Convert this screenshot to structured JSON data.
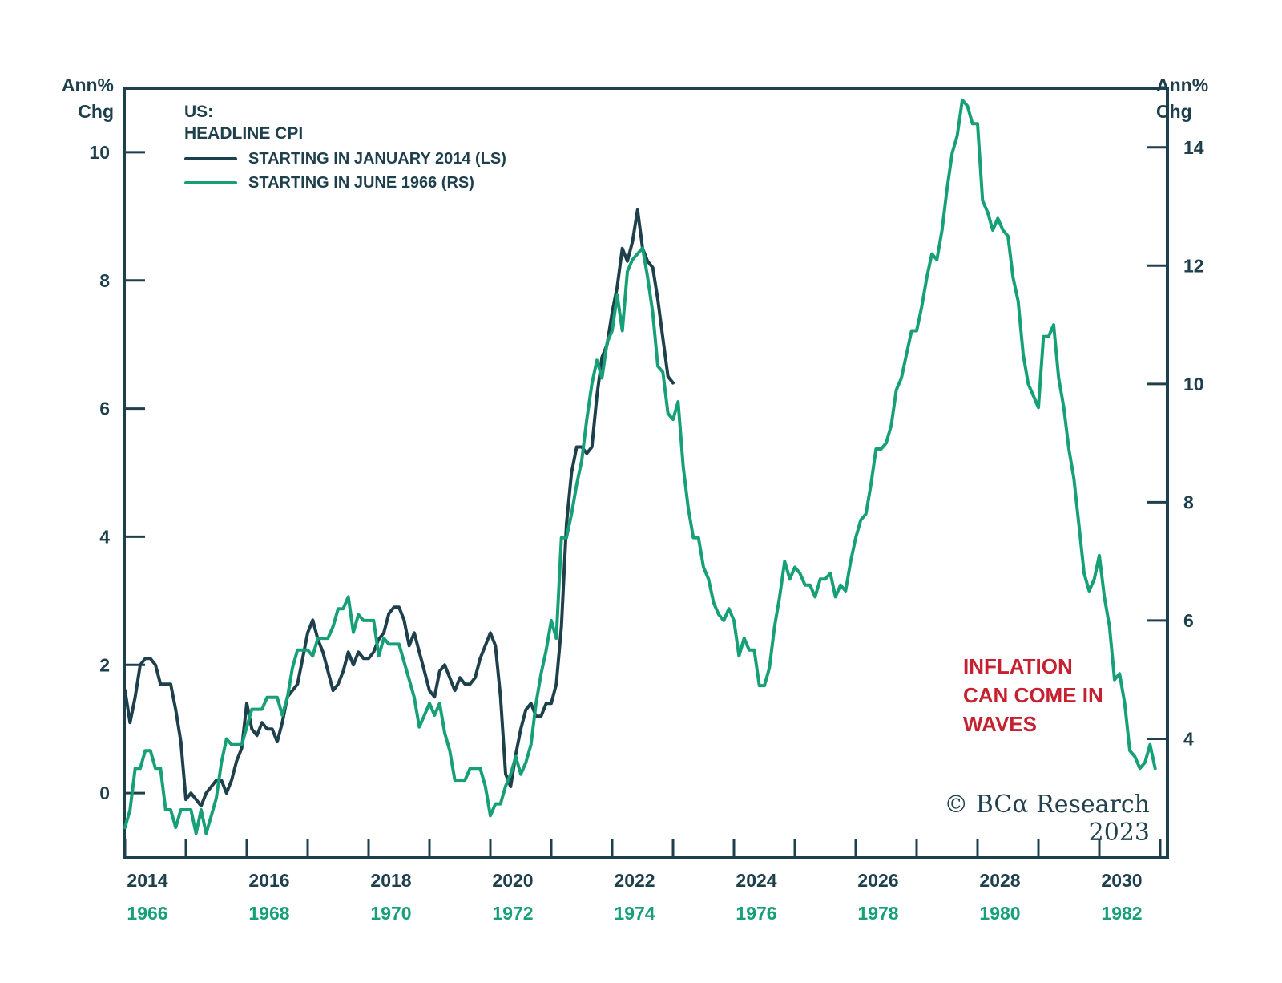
{
  "axis_left": {
    "title": [
      "Ann%",
      "Chg"
    ],
    "ticks": [
      0,
      2,
      4,
      6,
      8,
      10
    ]
  },
  "axis_right": {
    "title": [
      "Ann%",
      "Chg"
    ],
    "ticks": [
      4,
      6,
      8,
      10,
      12,
      14
    ]
  },
  "legend": {
    "region": "US:",
    "title": "HEADLINE CPI"
  },
  "x_axis": {
    "dark_years": [
      "2014",
      "2016",
      "2018",
      "2020",
      "2022",
      "2024",
      "2026",
      "2028",
      "2030"
    ],
    "green_years": [
      "1966",
      "1968",
      "1970",
      "1972",
      "1974",
      "1976",
      "1978",
      "1980",
      "1982"
    ]
  },
  "annotation": {
    "line1": "INFLATION",
    "line2": "CAN COME IN",
    "line3": "WAVES",
    "color": "#c52130"
  },
  "copyright_text": "© BCα Research 2023",
  "colors": {
    "dark": "#1e3f4c",
    "green": "#17a077",
    "red": "#c52130"
  },
  "chart_data": {
    "type": "line",
    "title": "US: HEADLINE CPI",
    "ylabel_left": "Ann% Chg",
    "ylabel_right": "Ann% Chg",
    "left_ylim": [
      -1,
      11
    ],
    "right_ylim": [
      2,
      15
    ],
    "left_ticks": [
      0,
      2,
      4,
      6,
      8,
      10
    ],
    "right_ticks": [
      4,
      6,
      8,
      10,
      12,
      14
    ],
    "x_tick_years_dark": [
      2014,
      2016,
      2018,
      2020,
      2022,
      2024,
      2026,
      2028,
      2030
    ],
    "x_tick_years_green": [
      1966,
      1968,
      1970,
      1972,
      1974,
      1976,
      1978,
      1980,
      1982
    ],
    "alignment_note": "Both series start at the left edge: Jan 2014 (LS series) aligned with Jun 1966 (RS series); monthly data, year-over-year % change",
    "series": [
      {
        "name": "STARTING IN JANUARY 2014 (LS)",
        "axis": "left",
        "color": "#1e3f4c",
        "start": "2014-01",
        "end": "2023-01",
        "frequency": "monthly",
        "values": [
          1.6,
          1.1,
          1.5,
          2.0,
          2.1,
          2.1,
          2.0,
          1.7,
          1.7,
          1.7,
          1.3,
          0.8,
          -0.1,
          0.0,
          -0.1,
          -0.2,
          0.0,
          0.1,
          0.2,
          0.2,
          0.0,
          0.2,
          0.5,
          0.7,
          1.4,
          1.0,
          0.9,
          1.1,
          1.0,
          1.0,
          0.8,
          1.1,
          1.5,
          1.6,
          1.7,
          2.1,
          2.5,
          2.7,
          2.4,
          2.2,
          1.9,
          1.6,
          1.7,
          1.9,
          2.2,
          2.0,
          2.2,
          2.1,
          2.1,
          2.2,
          2.4,
          2.5,
          2.8,
          2.9,
          2.9,
          2.7,
          2.3,
          2.5,
          2.2,
          1.9,
          1.6,
          1.5,
          1.9,
          2.0,
          1.8,
          1.6,
          1.8,
          1.7,
          1.7,
          1.8,
          2.1,
          2.3,
          2.5,
          2.3,
          1.5,
          0.3,
          0.1,
          0.6,
          1.0,
          1.3,
          1.4,
          1.2,
          1.2,
          1.4,
          1.4,
          1.7,
          2.6,
          4.2,
          5.0,
          5.4,
          5.4,
          5.3,
          5.4,
          6.2,
          6.8,
          7.0,
          7.5,
          7.9,
          8.5,
          8.3,
          8.6,
          9.1,
          8.5,
          8.3,
          8.2,
          7.7,
          7.1,
          6.5,
          6.4
        ]
      },
      {
        "name": "STARTING IN JUNE 1966 (RS)",
        "axis": "right",
        "color": "#17a077",
        "start": "1966-06",
        "end": "1983-05",
        "frequency": "monthly",
        "values": [
          2.5,
          2.8,
          3.5,
          3.5,
          3.8,
          3.8,
          3.5,
          3.5,
          2.8,
          2.8,
          2.5,
          2.8,
          2.8,
          2.8,
          2.4,
          2.8,
          2.4,
          2.7,
          3.0,
          3.6,
          4.0,
          3.9,
          3.9,
          3.9,
          4.2,
          4.5,
          4.5,
          4.5,
          4.7,
          4.7,
          4.7,
          4.4,
          4.7,
          5.2,
          5.5,
          5.5,
          5.5,
          5.4,
          5.7,
          5.7,
          5.7,
          5.9,
          6.2,
          6.2,
          6.4,
          5.8,
          6.1,
          6.0,
          6.0,
          6.0,
          5.4,
          5.7,
          5.6,
          5.6,
          5.6,
          5.3,
          5.0,
          4.7,
          4.2,
          4.4,
          4.6,
          4.4,
          4.6,
          4.1,
          3.8,
          3.3,
          3.3,
          3.3,
          3.5,
          3.5,
          3.5,
          3.2,
          2.7,
          2.9,
          2.9,
          3.2,
          3.4,
          3.7,
          3.4,
          3.6,
          3.9,
          4.6,
          5.1,
          5.5,
          6.0,
          5.7,
          7.4,
          7.4,
          7.8,
          8.3,
          8.7,
          9.4,
          10.0,
          10.4,
          10.1,
          10.7,
          10.9,
          11.5,
          10.9,
          11.9,
          12.1,
          12.2,
          12.3,
          11.8,
          11.2,
          10.3,
          10.2,
          9.5,
          9.4,
          9.7,
          8.6,
          7.9,
          7.4,
          7.4,
          6.9,
          6.7,
          6.3,
          6.1,
          6.0,
          6.2,
          6.0,
          5.4,
          5.7,
          5.5,
          5.5,
          4.9,
          4.9,
          5.2,
          5.9,
          6.4,
          7.0,
          6.7,
          6.9,
          6.8,
          6.6,
          6.6,
          6.4,
          6.7,
          6.7,
          6.8,
          6.4,
          6.6,
          6.5,
          7.0,
          7.4,
          7.7,
          7.8,
          8.3,
          8.9,
          8.9,
          9.0,
          9.3,
          9.9,
          10.1,
          10.5,
          10.9,
          10.9,
          11.3,
          11.8,
          12.2,
          12.1,
          12.6,
          13.3,
          13.9,
          14.2,
          14.8,
          14.7,
          14.4,
          14.4,
          13.1,
          12.9,
          12.6,
          12.8,
          12.6,
          12.5,
          11.8,
          11.4,
          10.5,
          10.0,
          9.8,
          9.6,
          10.8,
          10.8,
          11.0,
          10.1,
          9.6,
          8.9,
          8.4,
          7.6,
          6.8,
          6.5,
          6.7,
          7.1,
          6.4,
          5.9,
          5.0,
          5.1,
          4.6,
          3.8,
          3.7,
          3.5,
          3.6,
          3.9,
          3.5
        ]
      }
    ]
  }
}
